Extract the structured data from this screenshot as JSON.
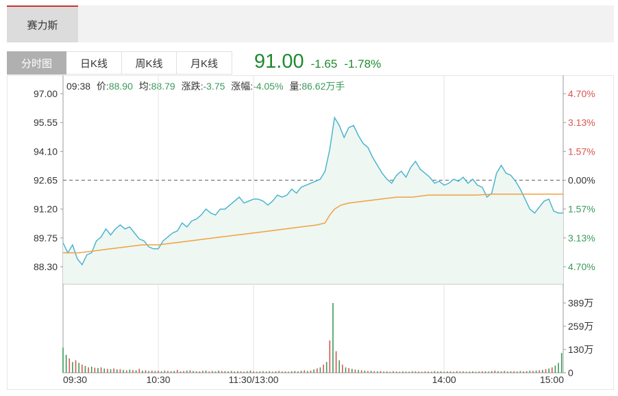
{
  "stock_tab": {
    "label": "赛力斯"
  },
  "tabs": [
    {
      "label": "分时图",
      "active": true
    },
    {
      "label": "日K线",
      "active": false
    },
    {
      "label": "周K线",
      "active": false
    },
    {
      "label": "月K线",
      "active": false
    }
  ],
  "quote": {
    "price": "91.00",
    "change": "-1.65",
    "change_pct": "-1.78%"
  },
  "info_bar": {
    "time": "09:38",
    "price_label": "价:",
    "price": "88.90",
    "avg_label": "均:",
    "avg": "88.79",
    "chg_label": "涨跌:",
    "chg": "-3.75",
    "pct_label": "涨幅:",
    "pct": "-4.05%",
    "vol_label": "量:",
    "vol": "86.62万手"
  },
  "colors": {
    "price_line": "#4bb4cf",
    "avg_line": "#f0a040",
    "up": "#d9534f",
    "down": "#3a9a5a",
    "area_fill": "#eef7f2"
  },
  "chart_data": {
    "type": "line",
    "x_ticks": [
      "09:30",
      "10:30",
      "11:30/13:00",
      "14:00",
      "15:00"
    ],
    "y_ticks": [
      "97.00",
      "95.55",
      "94.10",
      "92.65",
      "91.20",
      "89.75",
      "88.30"
    ],
    "pct_ticks": [
      "4.70%",
      "3.13%",
      "1.57%",
      "0.00%",
      "1.57%",
      "3.13%",
      "4.70%"
    ],
    "vol_ticks": [
      "389万",
      "259万",
      "130万",
      "0"
    ],
    "prev_close": 92.65,
    "ylim": [
      87.6,
      97.0
    ],
    "vol_max": 389,
    "price_series": [
      [
        0,
        89.5
      ],
      [
        3,
        89.0
      ],
      [
        6,
        89.4
      ],
      [
        9,
        88.7
      ],
      [
        12,
        88.4
      ],
      [
        15,
        88.9
      ],
      [
        18,
        89.0
      ],
      [
        21,
        89.6
      ],
      [
        24,
        89.8
      ],
      [
        27,
        90.2
      ],
      [
        30,
        89.9
      ],
      [
        33,
        90.2
      ],
      [
        36,
        90.4
      ],
      [
        39,
        90.2
      ],
      [
        42,
        90.3
      ],
      [
        45,
        90.0
      ],
      [
        48,
        89.7
      ],
      [
        51,
        89.6
      ],
      [
        54,
        89.3
      ],
      [
        57,
        89.2
      ],
      [
        60,
        89.2
      ],
      [
        63,
        89.6
      ],
      [
        66,
        89.8
      ],
      [
        69,
        90.0
      ],
      [
        72,
        90.1
      ],
      [
        75,
        90.5
      ],
      [
        78,
        90.3
      ],
      [
        81,
        90.6
      ],
      [
        84,
        90.7
      ],
      [
        87,
        90.9
      ],
      [
        90,
        91.2
      ],
      [
        93,
        91.0
      ],
      [
        96,
        90.9
      ],
      [
        99,
        91.2
      ],
      [
        102,
        91.2
      ],
      [
        105,
        91.4
      ],
      [
        108,
        91.6
      ],
      [
        111,
        91.8
      ],
      [
        114,
        91.5
      ],
      [
        117,
        91.6
      ],
      [
        120,
        91.7
      ],
      [
        123,
        91.7
      ],
      [
        126,
        91.6
      ],
      [
        129,
        91.4
      ],
      [
        132,
        91.6
      ],
      [
        135,
        91.9
      ],
      [
        138,
        91.8
      ],
      [
        141,
        91.9
      ],
      [
        144,
        92.2
      ],
      [
        147,
        92.0
      ],
      [
        150,
        92.3
      ],
      [
        153,
        92.4
      ],
      [
        156,
        92.5
      ],
      [
        159,
        92.6
      ],
      [
        162,
        92.7
      ],
      [
        165,
        93.1
      ],
      [
        168,
        94.2
      ],
      [
        171,
        95.8
      ],
      [
        174,
        95.4
      ],
      [
        177,
        94.8
      ],
      [
        180,
        95.3
      ],
      [
        183,
        95.4
      ],
      [
        186,
        94.9
      ],
      [
        189,
        94.5
      ],
      [
        192,
        94.3
      ],
      [
        195,
        93.8
      ],
      [
        198,
        93.4
      ],
      [
        201,
        93.0
      ],
      [
        204,
        92.7
      ],
      [
        207,
        92.5
      ],
      [
        210,
        92.9
      ],
      [
        213,
        93.1
      ],
      [
        216,
        92.8
      ],
      [
        219,
        93.3
      ],
      [
        222,
        93.6
      ],
      [
        225,
        93.2
      ],
      [
        228,
        93.0
      ],
      [
        231,
        92.8
      ],
      [
        234,
        92.5
      ],
      [
        237,
        92.6
      ],
      [
        240,
        92.4
      ],
      [
        243,
        92.5
      ],
      [
        246,
        92.7
      ],
      [
        249,
        92.6
      ],
      [
        252,
        92.8
      ],
      [
        255,
        92.5
      ],
      [
        258,
        92.7
      ],
      [
        261,
        92.4
      ],
      [
        264,
        92.3
      ],
      [
        267,
        91.8
      ],
      [
        270,
        92.0
      ],
      [
        273,
        93.0
      ],
      [
        276,
        93.4
      ],
      [
        279,
        93.0
      ],
      [
        282,
        92.9
      ],
      [
        285,
        92.6
      ],
      [
        288,
        92.2
      ],
      [
        291,
        91.7
      ],
      [
        294,
        91.2
      ],
      [
        297,
        91.0
      ],
      [
        300,
        91.3
      ],
      [
        303,
        91.6
      ],
      [
        306,
        91.7
      ],
      [
        309,
        91.1
      ],
      [
        312,
        91.0
      ],
      [
        315,
        91.0
      ]
    ],
    "avg_series": [
      [
        0,
        89.0
      ],
      [
        10,
        89.0
      ],
      [
        20,
        89.1
      ],
      [
        30,
        89.2
      ],
      [
        40,
        89.3
      ],
      [
        50,
        89.4
      ],
      [
        60,
        89.4
      ],
      [
        70,
        89.5
      ],
      [
        80,
        89.6
      ],
      [
        90,
        89.7
      ],
      [
        100,
        89.8
      ],
      [
        110,
        89.9
      ],
      [
        120,
        90.0
      ],
      [
        130,
        90.1
      ],
      [
        140,
        90.2
      ],
      [
        150,
        90.3
      ],
      [
        160,
        90.4
      ],
      [
        165,
        90.5
      ],
      [
        168,
        90.9
      ],
      [
        171,
        91.2
      ],
      [
        175,
        91.4
      ],
      [
        180,
        91.5
      ],
      [
        190,
        91.6
      ],
      [
        200,
        91.7
      ],
      [
        210,
        91.8
      ],
      [
        220,
        91.8
      ],
      [
        230,
        91.9
      ],
      [
        240,
        91.9
      ],
      [
        250,
        91.9
      ],
      [
        260,
        91.9
      ],
      [
        270,
        91.95
      ],
      [
        280,
        91.95
      ],
      [
        290,
        91.95
      ],
      [
        300,
        91.95
      ],
      [
        315,
        91.95
      ]
    ],
    "volume": [
      [
        0,
        140,
        1
      ],
      [
        2,
        100,
        1
      ],
      [
        4,
        80,
        0
      ],
      [
        6,
        60,
        1
      ],
      [
        8,
        70,
        0
      ],
      [
        10,
        55,
        1
      ],
      [
        12,
        45,
        0
      ],
      [
        14,
        38,
        1
      ],
      [
        16,
        30,
        0
      ],
      [
        18,
        34,
        1
      ],
      [
        20,
        28,
        0
      ],
      [
        22,
        26,
        1
      ],
      [
        24,
        30,
        0
      ],
      [
        26,
        24,
        1
      ],
      [
        28,
        22,
        0
      ],
      [
        30,
        20,
        1
      ],
      [
        32,
        24,
        0
      ],
      [
        34,
        18,
        1
      ],
      [
        36,
        20,
        0
      ],
      [
        38,
        16,
        1
      ],
      [
        40,
        14,
        0
      ],
      [
        42,
        18,
        1
      ],
      [
        44,
        15,
        0
      ],
      [
        46,
        14,
        1
      ],
      [
        48,
        22,
        0
      ],
      [
        50,
        12,
        1
      ],
      [
        52,
        14,
        0
      ],
      [
        54,
        10,
        1
      ],
      [
        56,
        12,
        0
      ],
      [
        58,
        10,
        1
      ],
      [
        60,
        11,
        0
      ],
      [
        62,
        8,
        1
      ],
      [
        64,
        12,
        0
      ],
      [
        66,
        10,
        1
      ],
      [
        68,
        9,
        0
      ],
      [
        70,
        10,
        1
      ],
      [
        72,
        16,
        0
      ],
      [
        74,
        8,
        1
      ],
      [
        76,
        10,
        0
      ],
      [
        78,
        12,
        1
      ],
      [
        80,
        14,
        0
      ],
      [
        82,
        10,
        1
      ],
      [
        84,
        9,
        0
      ],
      [
        86,
        8,
        1
      ],
      [
        88,
        11,
        0
      ],
      [
        90,
        12,
        1
      ],
      [
        92,
        7,
        0
      ],
      [
        94,
        10,
        1
      ],
      [
        96,
        8,
        0
      ],
      [
        98,
        12,
        1
      ],
      [
        100,
        10,
        0
      ],
      [
        102,
        9,
        1
      ],
      [
        104,
        8,
        0
      ],
      [
        106,
        10,
        1
      ],
      [
        108,
        7,
        0
      ],
      [
        110,
        9,
        1
      ],
      [
        112,
        8,
        0
      ],
      [
        114,
        6,
        1
      ],
      [
        116,
        9,
        0
      ],
      [
        118,
        12,
        1
      ],
      [
        120,
        8,
        0
      ],
      [
        122,
        6,
        1
      ],
      [
        124,
        8,
        0
      ],
      [
        126,
        9,
        1
      ],
      [
        128,
        7,
        0
      ],
      [
        130,
        9,
        1
      ],
      [
        132,
        6,
        0
      ],
      [
        134,
        8,
        1
      ],
      [
        136,
        10,
        0
      ],
      [
        138,
        7,
        1
      ],
      [
        140,
        8,
        0
      ],
      [
        142,
        6,
        1
      ],
      [
        144,
        9,
        0
      ],
      [
        146,
        10,
        1
      ],
      [
        148,
        8,
        0
      ],
      [
        150,
        11,
        1
      ],
      [
        152,
        14,
        0
      ],
      [
        154,
        10,
        1
      ],
      [
        156,
        12,
        0
      ],
      [
        158,
        18,
        1
      ],
      [
        160,
        24,
        0
      ],
      [
        162,
        30,
        1
      ],
      [
        164,
        45,
        0
      ],
      [
        166,
        60,
        1
      ],
      [
        168,
        180,
        0
      ],
      [
        170,
        389,
        1
      ],
      [
        172,
        120,
        0
      ],
      [
        174,
        70,
        1
      ],
      [
        176,
        45,
        0
      ],
      [
        178,
        30,
        1
      ],
      [
        180,
        26,
        0
      ],
      [
        182,
        22,
        1
      ],
      [
        184,
        18,
        0
      ],
      [
        186,
        16,
        1
      ],
      [
        188,
        14,
        0
      ],
      [
        190,
        12,
        1
      ],
      [
        192,
        10,
        0
      ],
      [
        194,
        11,
        1
      ],
      [
        196,
        9,
        0
      ],
      [
        198,
        8,
        1
      ],
      [
        200,
        10,
        0
      ],
      [
        202,
        7,
        1
      ],
      [
        204,
        8,
        0
      ],
      [
        206,
        6,
        1
      ],
      [
        208,
        9,
        0
      ],
      [
        210,
        7,
        1
      ],
      [
        212,
        6,
        0
      ],
      [
        214,
        8,
        1
      ],
      [
        216,
        7,
        0
      ],
      [
        218,
        6,
        1
      ],
      [
        220,
        9,
        0
      ],
      [
        222,
        8,
        1
      ],
      [
        224,
        7,
        0
      ],
      [
        226,
        6,
        1
      ],
      [
        228,
        8,
        0
      ],
      [
        230,
        7,
        1
      ],
      [
        232,
        6,
        0
      ],
      [
        234,
        9,
        1
      ],
      [
        236,
        7,
        0
      ],
      [
        238,
        8,
        1
      ],
      [
        240,
        6,
        0
      ],
      [
        242,
        7,
        1
      ],
      [
        244,
        8,
        0
      ],
      [
        246,
        6,
        1
      ],
      [
        248,
        9,
        0
      ],
      [
        250,
        7,
        1
      ],
      [
        252,
        8,
        0
      ],
      [
        254,
        6,
        1
      ],
      [
        256,
        7,
        0
      ],
      [
        258,
        8,
        1
      ],
      [
        260,
        6,
        0
      ],
      [
        262,
        7,
        1
      ],
      [
        264,
        9,
        0
      ],
      [
        266,
        8,
        1
      ],
      [
        268,
        7,
        0
      ],
      [
        270,
        10,
        1
      ],
      [
        272,
        12,
        0
      ],
      [
        274,
        9,
        1
      ],
      [
        276,
        8,
        0
      ],
      [
        278,
        10,
        1
      ],
      [
        280,
        7,
        0
      ],
      [
        282,
        8,
        1
      ],
      [
        284,
        9,
        0
      ],
      [
        286,
        7,
        1
      ],
      [
        288,
        10,
        0
      ],
      [
        290,
        8,
        1
      ],
      [
        292,
        9,
        0
      ],
      [
        294,
        11,
        1
      ],
      [
        296,
        10,
        0
      ],
      [
        298,
        12,
        1
      ],
      [
        300,
        14,
        0
      ],
      [
        302,
        16,
        1
      ],
      [
        304,
        20,
        0
      ],
      [
        306,
        24,
        1
      ],
      [
        308,
        30,
        0
      ],
      [
        310,
        40,
        1
      ],
      [
        312,
        55,
        1
      ],
      [
        314,
        110,
        1
      ]
    ]
  }
}
